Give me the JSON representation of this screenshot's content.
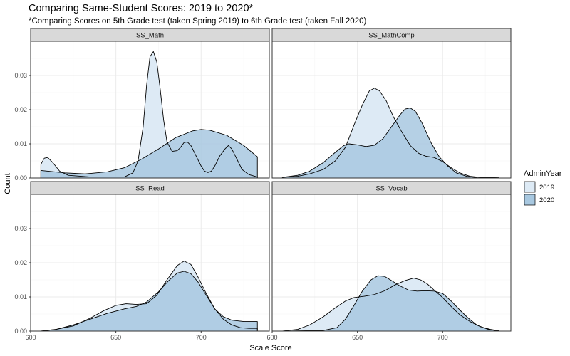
{
  "header": {
    "title": "Comparing Same-Student Scores: 2019 to 2020*",
    "subtitle": "*Comparing Scores on 5th Grade test (taken Spring 2019) to 6th Grade test (taken Fall 2020)"
  },
  "colors": {
    "fill_2019": "#ddeaf5",
    "fill_2020": "#a8c8e0",
    "strip_bg": "#d9d9d9",
    "grid_major": "#ebebeb",
    "grid_minor": "#f5f5f5"
  },
  "legend": {
    "title": "AdminYear",
    "placement": "right",
    "items": [
      {
        "label": "2019",
        "color": "#ddeaf5"
      },
      {
        "label": "2020",
        "color": "#a8c8e0"
      }
    ]
  },
  "chart_data": {
    "type": "area",
    "facets": [
      "SS_Math",
      "SS_MathComp",
      "SS_Read",
      "SS_Vocab"
    ],
    "xlabel": "Scale Score",
    "ylabel": "Count",
    "xlim": [
      600,
      740
    ],
    "ylim": [
      0,
      0.04
    ],
    "x_ticks": [
      600,
      650,
      700
    ],
    "y_ticks": [
      0.0,
      0.01,
      0.02,
      0.03
    ],
    "y_tick_labels": [
      "0.00",
      "0.01",
      "0.02",
      "0.03"
    ],
    "grid": true,
    "panels": [
      {
        "name": "SS_Math",
        "series": [
          {
            "name": "2019",
            "points": [
              [
                606,
                0.004
              ],
              [
                608,
                0.0058
              ],
              [
                610,
                0.006
              ],
              [
                613,
                0.0045
              ],
              [
                617,
                0.002
              ],
              [
                622,
                0.0008
              ],
              [
                635,
                0.0003
              ],
              [
                655,
                0.0003
              ],
              [
                660,
                0.0015
              ],
              [
                663,
                0.005
              ],
              [
                666,
                0.015
              ],
              [
                668,
                0.027
              ],
              [
                670,
                0.0355
              ],
              [
                672,
                0.037
              ],
              [
                674,
                0.034
              ],
              [
                676,
                0.026
              ],
              [
                678,
                0.017
              ],
              [
                680,
                0.0105
              ],
              [
                683,
                0.0078
              ],
              [
                686,
                0.008
              ],
              [
                688,
                0.009
              ],
              [
                690,
                0.0104
              ],
              [
                692,
                0.0105
              ],
              [
                694,
                0.0095
              ],
              [
                696,
                0.0075
              ],
              [
                698,
                0.0055
              ],
              [
                700,
                0.0035
              ],
              [
                702,
                0.002
              ],
              [
                704,
                0.0016
              ],
              [
                706,
                0.002
              ],
              [
                708,
                0.0035
              ],
              [
                711,
                0.0065
              ],
              [
                714,
                0.0085
              ],
              [
                716,
                0.0095
              ],
              [
                718,
                0.0085
              ],
              [
                721,
                0.0055
              ],
              [
                724,
                0.0025
              ],
              [
                728,
                0.001
              ],
              [
                733,
                0.0003
              ]
            ]
          },
          {
            "name": "2020",
            "points": [
              [
                606,
                0.0022
              ],
              [
                620,
                0.0015
              ],
              [
                632,
                0.0012
              ],
              [
                645,
                0.0018
              ],
              [
                655,
                0.003
              ],
              [
                665,
                0.0055
              ],
              [
                675,
                0.0085
              ],
              [
                685,
                0.0118
              ],
              [
                695,
                0.0138
              ],
              [
                700,
                0.0142
              ],
              [
                705,
                0.014
              ],
              [
                715,
                0.0125
              ],
              [
                725,
                0.0095
              ],
              [
                733,
                0.0062
              ]
            ]
          }
        ]
      },
      {
        "name": "SS_MathComp",
        "series": [
          {
            "name": "2019",
            "points": [
              [
                606,
                0.0002
              ],
              [
                615,
                0.0005
              ],
              [
                622,
                0.0012
              ],
              [
                630,
                0.0025
              ],
              [
                637,
                0.005
              ],
              [
                643,
                0.009
              ],
              [
                648,
                0.0155
              ],
              [
                653,
                0.0215
              ],
              [
                657,
                0.0255
              ],
              [
                660,
                0.0263
              ],
              [
                663,
                0.0255
              ],
              [
                667,
                0.0225
              ],
              [
                671,
                0.018
              ],
              [
                676,
                0.0135
              ],
              [
                681,
                0.0095
              ],
              [
                686,
                0.0072
              ],
              [
                690,
                0.0064
              ],
              [
                695,
                0.006
              ],
              [
                700,
                0.0048
              ],
              [
                705,
                0.003
              ],
              [
                710,
                0.0015
              ],
              [
                716,
                0.0005
              ],
              [
                722,
                0.0002
              ],
              [
                733,
                0.0001
              ]
            ]
          },
          {
            "name": "2020",
            "points": [
              [
                606,
                0.0002
              ],
              [
                615,
                0.0008
              ],
              [
                622,
                0.002
              ],
              [
                630,
                0.0045
              ],
              [
                637,
                0.0075
              ],
              [
                642,
                0.0095
              ],
              [
                645,
                0.01
              ],
              [
                650,
                0.0097
              ],
              [
                655,
                0.0092
              ],
              [
                660,
                0.0096
              ],
              [
                665,
                0.0115
              ],
              [
                670,
                0.015
              ],
              [
                675,
                0.0185
              ],
              [
                678,
                0.0202
              ],
              [
                681,
                0.0205
              ],
              [
                684,
                0.0195
              ],
              [
                688,
                0.016
              ],
              [
                693,
                0.0105
              ],
              [
                698,
                0.0062
              ],
              [
                703,
                0.0035
              ],
              [
                708,
                0.0015
              ],
              [
                714,
                0.0005
              ],
              [
                720,
                0.0001
              ],
              [
                733,
                0.0
              ]
            ]
          }
        ]
      },
      {
        "name": "SS_Read",
        "series": [
          {
            "name": "2019",
            "points": [
              [
                606,
                0.0
              ],
              [
                615,
                0.0005
              ],
              [
                625,
                0.0015
              ],
              [
                635,
                0.0038
              ],
              [
                643,
                0.006
              ],
              [
                650,
                0.0075
              ],
              [
                656,
                0.008
              ],
              [
                662,
                0.0078
              ],
              [
                668,
                0.008
              ],
              [
                674,
                0.0105
              ],
              [
                680,
                0.015
              ],
              [
                686,
                0.0192
              ],
              [
                690,
                0.0205
              ],
              [
                694,
                0.0195
              ],
              [
                698,
                0.016
              ],
              [
                703,
                0.011
              ],
              [
                708,
                0.0065
              ],
              [
                713,
                0.0035
              ],
              [
                718,
                0.0018
              ],
              [
                723,
                0.001
              ],
              [
                728,
                0.0008
              ],
              [
                733,
                0.0008
              ]
            ]
          },
          {
            "name": "2020",
            "points": [
              [
                606,
                0.0
              ],
              [
                615,
                0.0005
              ],
              [
                625,
                0.0018
              ],
              [
                635,
                0.0035
              ],
              [
                645,
                0.0052
              ],
              [
                655,
                0.0065
              ],
              [
                662,
                0.0072
              ],
              [
                668,
                0.0085
              ],
              [
                675,
                0.0115
              ],
              [
                681,
                0.0148
              ],
              [
                686,
                0.017
              ],
              [
                690,
                0.0175
              ],
              [
                694,
                0.0168
              ],
              [
                698,
                0.0145
              ],
              [
                703,
                0.0105
              ],
              [
                708,
                0.0065
              ],
              [
                713,
                0.0042
              ],
              [
                718,
                0.0032
              ],
              [
                725,
                0.0028
              ],
              [
                733,
                0.0028
              ]
            ]
          }
        ]
      },
      {
        "name": "SS_Vocab",
        "series": [
          {
            "name": "2019",
            "points": [
              [
                606,
                0.0
              ],
              [
                615,
                0.0005
              ],
              [
                622,
                0.0018
              ],
              [
                630,
                0.0042
              ],
              [
                637,
                0.0068
              ],
              [
                643,
                0.0088
              ],
              [
                648,
                0.0098
              ],
              [
                654,
                0.0102
              ],
              [
                660,
                0.0107
              ],
              [
                666,
                0.0118
              ],
              [
                672,
                0.0135
              ],
              [
                678,
                0.0148
              ],
              [
                683,
                0.0155
              ],
              [
                687,
                0.015
              ],
              [
                691,
                0.0138
              ],
              [
                695,
                0.012
              ],
              [
                700,
                0.0098
              ],
              [
                705,
                0.0072
              ],
              [
                710,
                0.0048
              ],
              [
                716,
                0.0028
              ],
              [
                722,
                0.0013
              ],
              [
                728,
                0.0005
              ],
              [
                733,
                0.0001
              ]
            ]
          },
          {
            "name": "2020",
            "points": [
              [
                606,
                0.0
              ],
              [
                630,
                0.0002
              ],
              [
                638,
                0.001
              ],
              [
                643,
                0.0035
              ],
              [
                648,
                0.0075
              ],
              [
                653,
                0.0118
              ],
              [
                658,
                0.015
              ],
              [
                662,
                0.0162
              ],
              [
                666,
                0.016
              ],
              [
                670,
                0.0148
              ],
              [
                675,
                0.0132
              ],
              [
                680,
                0.012
              ],
              [
                685,
                0.0117
              ],
              [
                690,
                0.0118
              ],
              [
                695,
                0.0117
              ],
              [
                700,
                0.011
              ],
              [
                705,
                0.0088
              ],
              [
                710,
                0.0062
              ],
              [
                715,
                0.0038
              ],
              [
                720,
                0.0018
              ],
              [
                726,
                0.0006
              ],
              [
                733,
                0.0
              ]
            ]
          }
        ]
      }
    ]
  }
}
